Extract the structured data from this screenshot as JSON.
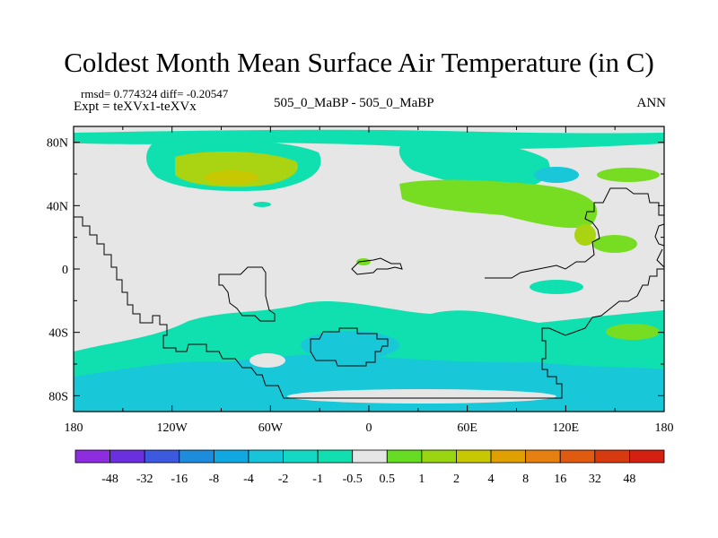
{
  "title": "Coldest Month Mean Surface Air Temperature (in C)",
  "stats": "rmsd= 0.774324 diff= -0.20547",
  "experiment": "Expt = teXVx1-teXVx",
  "center_label": "505_0_MaBP - 505_0_MaBP",
  "season": "ANN",
  "colors": {
    "land_outline": "#000000",
    "neutral": "#e6e6e6",
    "neg_small": "#10e0b0",
    "neg_medium": "#19c8d8",
    "pos_small": "#77dd22",
    "pos_medium": "#aad411"
  },
  "chart_data": {
    "type": "heatmap",
    "projection": "cylindrical-equidistant",
    "x_range": [
      -180,
      180
    ],
    "y_range": [
      -90,
      90
    ],
    "x_ticks": [
      "180",
      "120W",
      "60W",
      "0",
      "60E",
      "120E",
      "180"
    ],
    "y_ticks": [
      "80N",
      "40N",
      "0",
      "40S",
      "80S"
    ],
    "colorbar": {
      "levels": [
        "-48",
        "-32",
        "-16",
        "-8",
        "-4",
        "-2",
        "-1",
        "-0.5",
        "0.5",
        "1",
        "2",
        "4",
        "8",
        "16",
        "32",
        "48"
      ],
      "colors": [
        "#8e2ce0",
        "#6a30e0",
        "#3c5ae0",
        "#1e8cdc",
        "#10a8e2",
        "#18c4d8",
        "#12d8c4",
        "#10e0b0",
        "#e6e6e6",
        "#66dd22",
        "#99d611",
        "#c8c800",
        "#e0a000",
        "#e68010",
        "#e05a10",
        "#d83a10",
        "#d42010"
      ]
    }
  }
}
